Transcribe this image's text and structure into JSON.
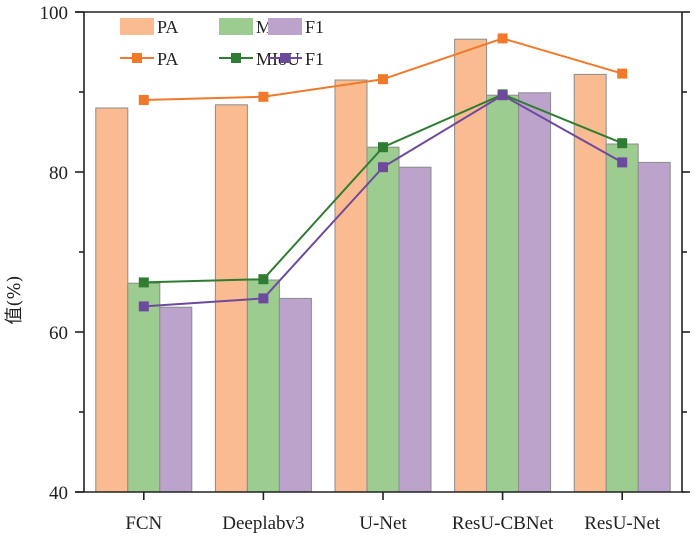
{
  "chart_data": {
    "type": "bar",
    "title": "",
    "xlabel": "",
    "ylabel": "值(%)",
    "ylim": [
      40,
      100
    ],
    "yticks": [
      40,
      60,
      80,
      100
    ],
    "yminor_step": 10,
    "grid": false,
    "legend_placement": "top-left",
    "categories": [
      "FCN",
      "Deeplabv3",
      "U-Net",
      "ResU-CBNet",
      "ResU-Net"
    ],
    "series": [
      {
        "name": "PA",
        "kind": "bar",
        "color": "#F9BB8F",
        "values": [
          88.0,
          88.4,
          91.5,
          96.6,
          92.2
        ]
      },
      {
        "name": "MIoU",
        "kind": "bar",
        "color": "#9DCC91",
        "values": [
          66.1,
          66.5,
          83.1,
          89.6,
          83.5
        ]
      },
      {
        "name": "F1",
        "kind": "bar",
        "color": "#BBA3CB",
        "values": [
          63.1,
          64.2,
          80.6,
          89.9,
          81.2
        ]
      },
      {
        "name": "PA",
        "kind": "line",
        "color": "#F07A2A",
        "values": [
          89.0,
          89.4,
          91.6,
          96.7,
          92.3
        ]
      },
      {
        "name": "MIoU",
        "kind": "line",
        "color": "#2E7D32",
        "values": [
          66.2,
          66.6,
          83.1,
          89.7,
          83.6
        ]
      },
      {
        "name": "F1",
        "kind": "line",
        "color": "#6E4A9E",
        "values": [
          63.2,
          64.2,
          80.6,
          89.6,
          81.2
        ]
      }
    ],
    "legend": {
      "bar_row": [
        "PA",
        "MIoU",
        "F1"
      ],
      "line_row": [
        "PA",
        "MIoU",
        "F1"
      ]
    }
  }
}
